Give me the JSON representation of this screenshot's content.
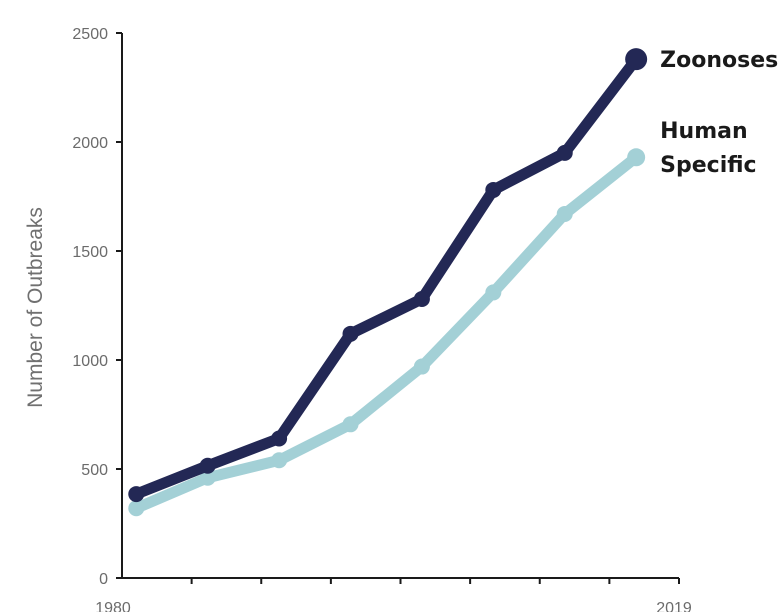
{
  "chart_data": {
    "type": "line",
    "ylabel": "Number of Outbreaks",
    "xlabel": "",
    "ylim": [
      0,
      2500
    ],
    "yticks": [
      0,
      500,
      1000,
      1500,
      2000,
      2500
    ],
    "xlim": [
      1980,
      2019
    ],
    "xtick_labels": [
      "1980",
      "2019"
    ],
    "x": [
      1981,
      1986,
      1991,
      1996,
      2001,
      2006,
      2011,
      2016
    ],
    "grid": false,
    "legend": "none",
    "series": [
      {
        "name": "Zoonoses",
        "color": "#232855",
        "values": [
          385,
          515,
          640,
          1120,
          1280,
          1780,
          1950,
          2380
        ]
      },
      {
        "name": "Human Specific",
        "label_lines": [
          "Human",
          "Specific"
        ],
        "color": "#a3d0d6",
        "values": [
          320,
          460,
          540,
          705,
          970,
          1310,
          1670,
          1930
        ]
      }
    ]
  }
}
